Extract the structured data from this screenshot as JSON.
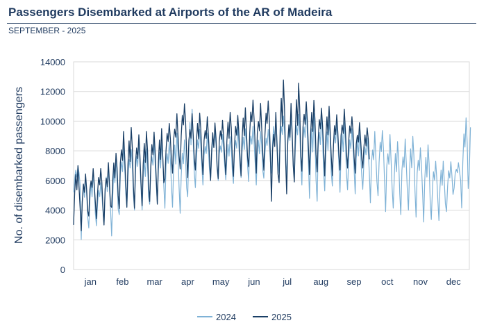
{
  "header": {
    "title": "Passengers Disembarked at Airports of the AR of Madeira",
    "subtitle": "SEPTEMBER - 2025"
  },
  "chart_data": {
    "type": "line",
    "title": "Passengers Disembarked at Airports of the AR of Madeira",
    "subtitle": "SEPTEMBER - 2025",
    "ylabel": "No. of disembarked passengers",
    "xlabel": "",
    "ylim": [
      0,
      14000
    ],
    "yticks": [
      0,
      2000,
      4000,
      6000,
      8000,
      10000,
      12000,
      14000
    ],
    "categories": [
      "jan",
      "feb",
      "mar",
      "apr",
      "may",
      "jun",
      "jul",
      "aug",
      "sep",
      "oct",
      "nov",
      "dec"
    ],
    "days_per_month": [
      31,
      28,
      31,
      30,
      31,
      30,
      31,
      31,
      30,
      31,
      30,
      31
    ],
    "grid": true,
    "legend_position": "bottom",
    "series": [
      {
        "name": "2024",
        "color": "#7fb2d6",
        "days": 366,
        "note": "daily values sampled weekly (max / min of each week)",
        "weekly_max": [
          7000,
          6500,
          6400,
          6000,
          6800,
          7800,
          8500,
          8200,
          8800,
          8200,
          8600,
          8600,
          8900,
          9200,
          9000,
          10800,
          9600,
          9200,
          9400,
          9100,
          9000,
          9600,
          9500,
          9900,
          9300,
          9600,
          10200,
          10500,
          10400,
          10600,
          10900,
          10600,
          10700,
          10100,
          10200,
          9900,
          9700,
          9400,
          9000,
          9300,
          9500,
          9100,
          8700,
          8800,
          9000,
          8500,
          8400,
          7500,
          7300,
          7400,
          7200,
          10400,
          11700
        ],
        "weekly_min": [
          5200,
          2000,
          2800,
          2900,
          3000,
          2100,
          3700,
          4100,
          4000,
          3800,
          4400,
          4500,
          4100,
          4200,
          3700,
          4900,
          5400,
          5700,
          5900,
          6000,
          5900,
          5800,
          6200,
          5900,
          5700,
          6100,
          6500,
          6400,
          6100,
          6000,
          5700,
          4500,
          4600,
          5300,
          5600,
          5200,
          5300,
          5100,
          5300,
          4500,
          4800,
          3900,
          3900,
          3700,
          4000,
          3500,
          3200,
          3300,
          3300,
          3800,
          5500,
          3900,
          6700
        ]
      },
      {
        "name": "2025",
        "color": "#1a3f66",
        "days": 273,
        "note": "daily values sampled weekly (max / min of each week)",
        "weekly_max": [
          7000,
          6600,
          6800,
          6900,
          7200,
          7900,
          9300,
          9600,
          9400,
          9300,
          9500,
          9500,
          10000,
          10500,
          11300,
          10500,
          10600,
          10300,
          9900,
          10300,
          10600,
          10600,
          10900,
          11600,
          11200,
          11500,
          10600,
          12900,
          11200,
          12600,
          11600,
          11400,
          11100,
          11000,
          10600,
          10800,
          10400,
          9900,
          9600,
          9400
        ],
        "weekly_min": [
          3000,
          2500,
          3600,
          3300,
          3000,
          4000,
          4100,
          4200,
          4100,
          4300,
          4500,
          4400,
          6000,
          6500,
          6600,
          6200,
          6500,
          6400,
          6000,
          6100,
          6400,
          6200,
          6300,
          6800,
          6500,
          6500,
          4600,
          5500,
          5100,
          5900,
          6600,
          6400,
          6500,
          6300,
          6200,
          6700,
          6700,
          6500,
          6700,
          6700
        ]
      }
    ]
  }
}
